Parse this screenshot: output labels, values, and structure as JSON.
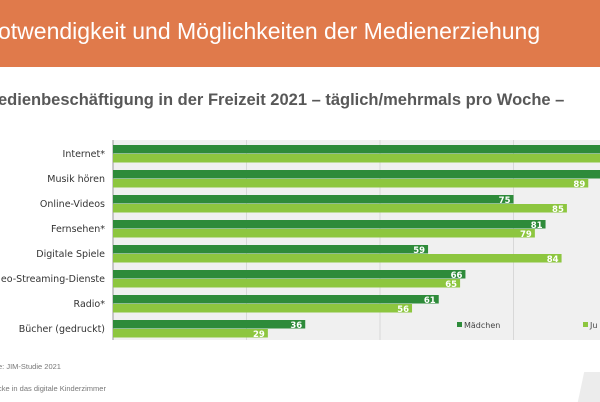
{
  "header": {
    "title": "otwendigkeit und Möglichkeiten der Medienerziehung"
  },
  "footer": {
    "source": "e: JIM-Studie 2021",
    "caption": "cke in das digitale Kinderzimmer"
  },
  "colors": {
    "header": "#e07a4b",
    "maedchen": "#2e8b3a",
    "jungen": "#8dc63f",
    "plot_bg": "#f0f0f0"
  },
  "chart_data": {
    "type": "bar",
    "orientation": "horizontal",
    "title": "edienbeschäftigung in der Freizeit 2021 – täglich/mehrmals pro Woche –",
    "categories": [
      "Internet*",
      "Musik hören",
      "Online-Videos",
      "Fernsehen*",
      "Digitale Spiele",
      "eo-Streaming-Dienste",
      "Radio*",
      "Bücher (gedruckt)"
    ],
    "series": [
      {
        "name": "Mädchen",
        "values": [
          null,
          null,
          75,
          81,
          59,
          66,
          61,
          36
        ]
      },
      {
        "name": "Ju",
        "values": [
          null,
          89,
          85,
          79,
          84,
          65,
          56,
          29
        ]
      }
    ],
    "xlim": [
      0,
      100
    ],
    "gridlines": [
      25,
      50,
      75
    ],
    "grid": true,
    "legend": "bottom-right",
    "note": "Bars for Internet* (both) and Musik hören (Mädchen) extend beyond the visible area"
  }
}
